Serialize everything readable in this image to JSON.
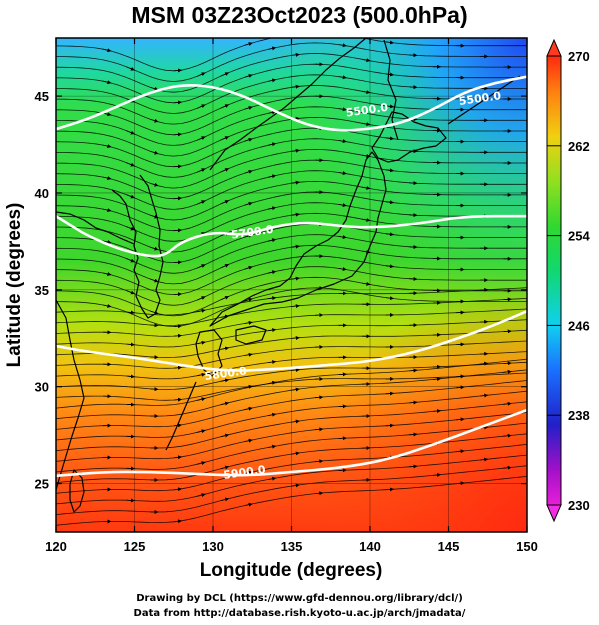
{
  "title": "MSM 03Z23Oct2023 (500.0hPa)",
  "xaxis": {
    "label": "Longitude (degrees)",
    "range": [
      120,
      150
    ],
    "ticks": [
      "120",
      "125",
      "130",
      "135",
      "140",
      "145",
      "150"
    ]
  },
  "yaxis": {
    "label": "Latitude  (degrees)",
    "range": [
      22.5,
      48
    ],
    "ticks": [
      "25",
      "30",
      "35",
      "40",
      "45"
    ]
  },
  "colorbar": {
    "min": 230,
    "max": 270,
    "ticks": [
      "230",
      "238",
      "246",
      "254",
      "262",
      "270"
    ]
  },
  "contours": [
    {
      "label": "5500.0",
      "points": [
        [
          120,
          43.3
        ],
        [
          122,
          43.8
        ],
        [
          124,
          44.5
        ],
        [
          126,
          45.2
        ],
        [
          128,
          45.6
        ],
        [
          130,
          45.5
        ],
        [
          132,
          45.0
        ],
        [
          134,
          44.2
        ],
        [
          136,
          43.5
        ],
        [
          138,
          43.2
        ],
        [
          140,
          43.3
        ],
        [
          142,
          43.6
        ],
        [
          144,
          44.3
        ],
        [
          146,
          45.2
        ],
        [
          148,
          45.7
        ],
        [
          150,
          46.0
        ]
      ]
    },
    {
      "label": "5700.0",
      "points": [
        [
          120,
          38.8
        ],
        [
          121,
          38.3
        ],
        [
          122,
          37.8
        ],
        [
          124,
          37.1
        ],
        [
          126,
          36.7
        ],
        [
          127,
          36.8
        ],
        [
          128,
          37.5
        ],
        [
          130,
          38.0
        ],
        [
          132,
          37.8
        ],
        [
          134,
          38.3
        ],
        [
          136,
          38.5
        ],
        [
          138,
          38.3
        ],
        [
          140,
          38.2
        ],
        [
          143,
          38.4
        ],
        [
          146,
          38.8
        ],
        [
          150,
          38.8
        ]
      ]
    },
    {
      "label": "5800.0",
      "points": [
        [
          120,
          32.1
        ],
        [
          122,
          31.8
        ],
        [
          125,
          31.5
        ],
        [
          128,
          31.1
        ],
        [
          131,
          30.8
        ],
        [
          134,
          30.9
        ],
        [
          137,
          31.1
        ],
        [
          140,
          31.3
        ],
        [
          143,
          31.8
        ],
        [
          146,
          32.6
        ],
        [
          148,
          33.2
        ],
        [
          150,
          33.9
        ]
      ]
    },
    {
      "label": "5900.0",
      "points": [
        [
          120,
          25.4
        ],
        [
          123,
          25.6
        ],
        [
          126,
          25.6
        ],
        [
          129,
          25.5
        ],
        [
          132,
          25.4
        ],
        [
          135,
          25.6
        ],
        [
          138,
          25.8
        ],
        [
          141,
          26.2
        ],
        [
          144,
          27.0
        ],
        [
          147,
          27.9
        ],
        [
          150,
          28.8
        ]
      ]
    }
  ],
  "contour_labels": [
    {
      "text": "5500.0",
      "lon": 139.8,
      "lat": 44.3
    },
    {
      "text": "5500.0",
      "lon": 147.0,
      "lat": 44.9
    },
    {
      "text": "5700.0",
      "lon": 132.5,
      "lat": 38.0
    },
    {
      "text": "5800.0",
      "lon": 130.8,
      "lat": 30.7
    },
    {
      "text": "5900.0",
      "lon": 132.0,
      "lat": 25.6
    }
  ],
  "credits": {
    "line1": "Drawing by DCL (https://www.gfd-dennou.org/library/dcl/)",
    "line2": "Data from http://database.rish.kyoto-u.ac.jp/arch/jmadata/"
  },
  "colors": {
    "cold": "#2040ff",
    "mid": "#20d040",
    "warm": "#ff3010",
    "contour": "#ffffff",
    "map": "#000000"
  }
}
